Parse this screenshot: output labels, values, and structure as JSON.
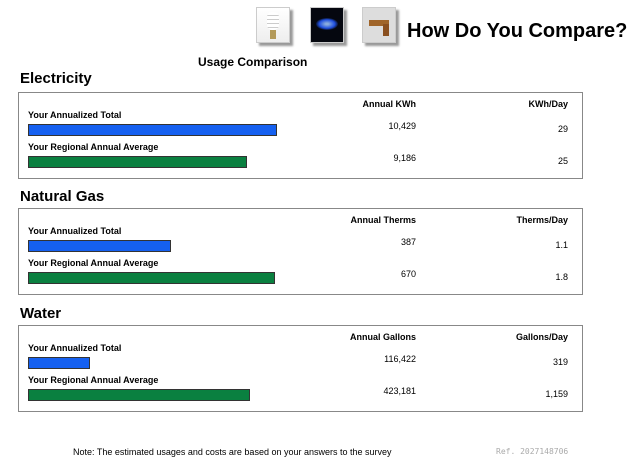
{
  "header": {
    "title": "How Do You Compare?",
    "icons": [
      "light-bulb-icon",
      "gas-flame-icon",
      "water-faucet-icon"
    ]
  },
  "subtitle": "Usage Comparison",
  "sections": [
    {
      "title": "Electricity",
      "col1": "Annual KWh",
      "col2": "KWh/Day",
      "rows": [
        {
          "label": "Your Annualized Total",
          "annual": "10,429",
          "daily": "29",
          "bar_fraction": 0.996,
          "color": "#1560f0"
        },
        {
          "label": "Your Regional Annual Average",
          "annual": "9,186",
          "daily": "25",
          "bar_fraction": 0.876,
          "color": "#0a8040"
        }
      ]
    },
    {
      "title": "Natural Gas",
      "col1": "Annual Therms",
      "col2": "Therms/Day",
      "rows": [
        {
          "label": "Your Annualized Total",
          "annual": "387",
          "daily": "1.1",
          "bar_fraction": 0.572,
          "color": "#1560f0"
        },
        {
          "label": "Your Regional Annual Average",
          "annual": "670",
          "daily": "1.8",
          "bar_fraction": 0.988,
          "color": "#0a8040"
        }
      ]
    },
    {
      "title": "Water",
      "col1": "Annual Gallons",
      "col2": "Gallons/Day",
      "rows": [
        {
          "label": "Your Annualized Total",
          "annual": "116,422",
          "daily": "319",
          "bar_fraction": 0.248,
          "color": "#1560f0"
        },
        {
          "label": "Your Regional Annual Average",
          "annual": "423,181",
          "daily": "1,159",
          "bar_fraction": 0.888,
          "color": "#0a8040"
        }
      ]
    }
  ],
  "footer": {
    "note": "Note: The estimated usages and costs are based on your answers to the survey",
    "ref": "Ref. 2027148706"
  }
}
